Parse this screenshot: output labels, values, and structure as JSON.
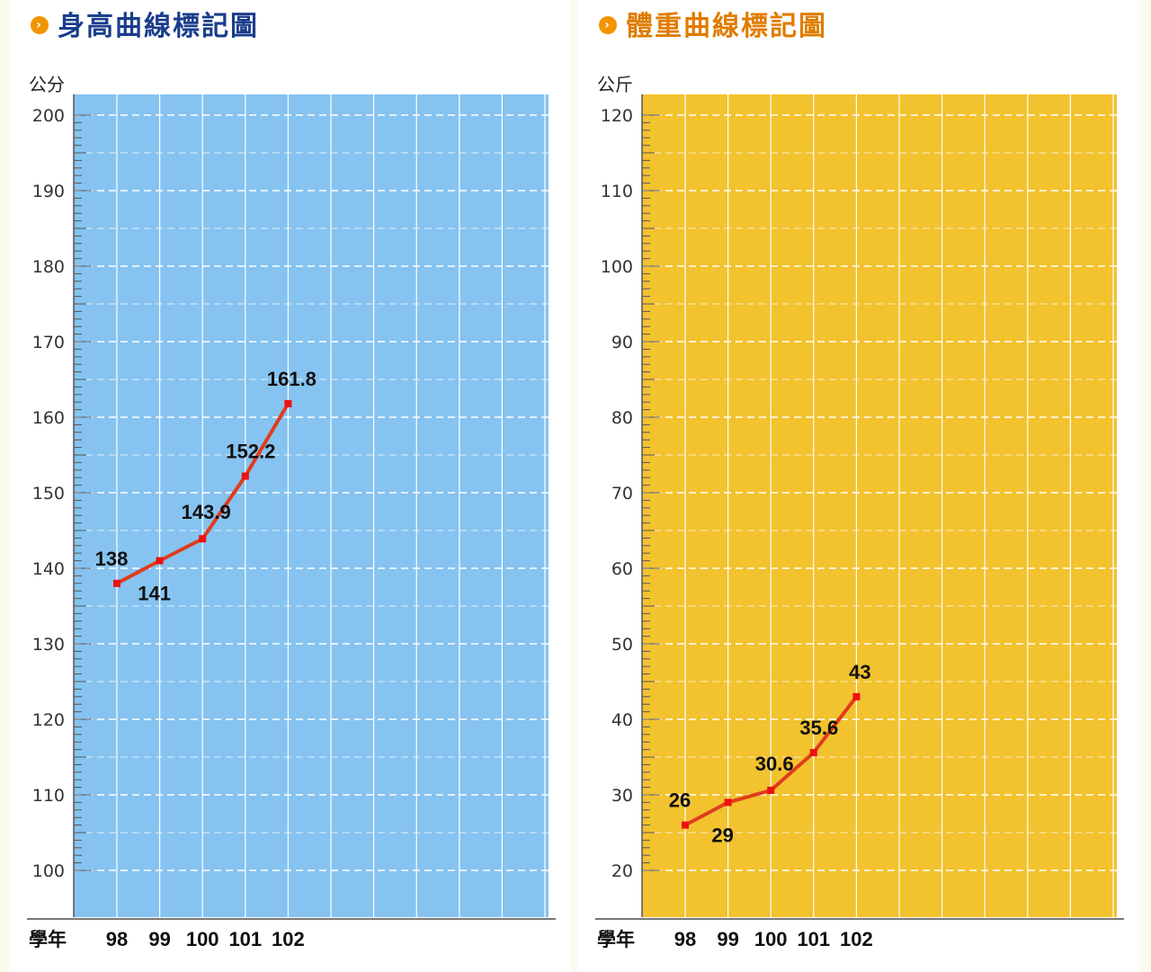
{
  "chart_data": [
    {
      "type": "line",
      "title": "身高曲線標記圖",
      "title_color": "#1a3d8c",
      "unit_label": "公分",
      "x_axis_label": "學年",
      "categories": [
        "98",
        "99",
        "100",
        "101",
        "102"
      ],
      "values": [
        138,
        141,
        143.9,
        152.2,
        161.8
      ],
      "value_labels": [
        "138",
        "141",
        "143.9",
        "152.2",
        "161.8"
      ],
      "yticks": [
        "200",
        "190",
        "180",
        "170",
        "160",
        "150",
        "140",
        "130",
        "120",
        "110",
        "100"
      ],
      "ylim": [
        100,
        200
      ],
      "background_color": "#86c3f0",
      "line_color": "#e03c1c",
      "grid": true
    },
    {
      "type": "line",
      "title": "體重曲線標記圖",
      "title_color": "#e07c00",
      "unit_label": "公斤",
      "x_axis_label": "學年",
      "categories": [
        "98",
        "99",
        "100",
        "101",
        "102"
      ],
      "values": [
        26,
        29,
        30.6,
        35.6,
        43
      ],
      "value_labels": [
        "26",
        "29",
        "30.6",
        "35.6",
        "43"
      ],
      "yticks": [
        "120",
        "110",
        "100",
        "90",
        "80",
        "70",
        "60",
        "50",
        "40",
        "30",
        "20"
      ],
      "ylim": [
        20,
        120
      ],
      "background_color": "#f2c22f",
      "line_color": "#e03c1c",
      "grid": true
    }
  ]
}
